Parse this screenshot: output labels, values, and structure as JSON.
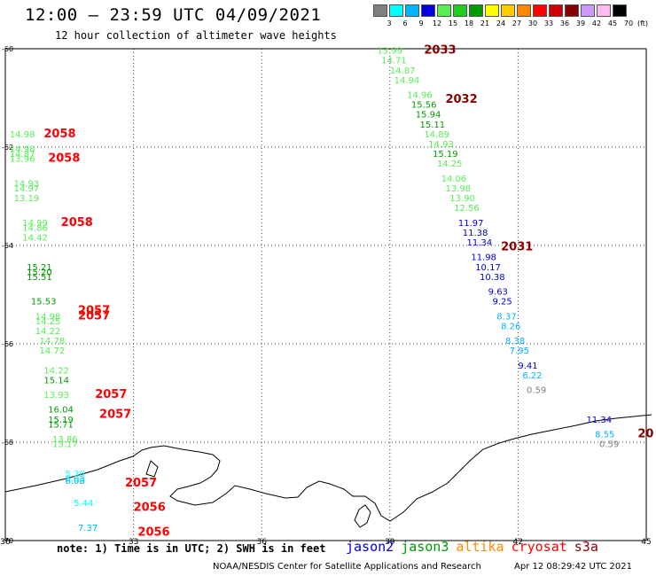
{
  "header": {
    "title": "12:00 — 23:59 UTC 04/09/2021",
    "subtitle": "12 hour collection of altimeter wave heights"
  },
  "legend": {
    "unit": "(ft)",
    "bins": [
      {
        "label": "3",
        "color": "#7f7f7f"
      },
      {
        "label": "6",
        "color": "#00ffff"
      },
      {
        "label": "9",
        "color": "#00b4ff"
      },
      {
        "label": "12",
        "color": "#0000dd"
      },
      {
        "label": "15",
        "color": "#55ee55"
      },
      {
        "label": "18",
        "color": "#22cc22"
      },
      {
        "label": "21",
        "color": "#009900"
      },
      {
        "label": "24",
        "color": "#ffff00"
      },
      {
        "label": "27",
        "color": "#ffcc00"
      },
      {
        "label": "30",
        "color": "#ff8800"
      },
      {
        "label": "33",
        "color": "#ff0000"
      },
      {
        "label": "36",
        "color": "#cc0000"
      },
      {
        "label": "39",
        "color": "#880000"
      },
      {
        "label": "42",
        "color": "#cc99ff"
      },
      {
        "label": "45",
        "color": "#ffbbee"
      },
      {
        "label": "70",
        "color": "#000000"
      }
    ]
  },
  "axes": {
    "y_labels": [
      "-60",
      "-62",
      "-64",
      "-66",
      "-68",
      "-70"
    ],
    "x_labels": [
      "30",
      "33",
      "36",
      "39",
      "42",
      "45"
    ],
    "lat_range": [
      -70,
      -60
    ],
    "lon_range": [
      30,
      45
    ]
  },
  "tracks": [
    {
      "name": "east-track",
      "points": [
        {
          "lon": 38.7,
          "lat": -60.1,
          "value": "13.99",
          "color": "#55ee55"
        },
        {
          "lon": 38.8,
          "lat": -60.3,
          "value": "14.71",
          "color": "#55ee55"
        },
        {
          "lon": 39.0,
          "lat": -60.5,
          "value": "14.87",
          "color": "#55ee55"
        },
        {
          "lon": 39.1,
          "lat": -60.7,
          "value": "14.94",
          "color": "#55ee55"
        },
        {
          "lon": 39.4,
          "lat": -61.0,
          "value": "14.96",
          "color": "#55ee55"
        },
        {
          "lon": 39.5,
          "lat": -61.2,
          "value": "15.56",
          "color": "#009900"
        },
        {
          "lon": 39.6,
          "lat": -61.4,
          "value": "15.94",
          "color": "#009900"
        },
        {
          "lon": 39.7,
          "lat": -61.6,
          "value": "15.11",
          "color": "#009900"
        },
        {
          "lon": 39.8,
          "lat": -61.8,
          "value": "14.89",
          "color": "#55ee55"
        },
        {
          "lon": 39.9,
          "lat": -62.0,
          "value": "14.93",
          "color": "#55ee55"
        },
        {
          "lon": 40.0,
          "lat": -62.2,
          "value": "15.19",
          "color": "#009900"
        },
        {
          "lon": 40.1,
          "lat": -62.4,
          "value": "14.25",
          "color": "#55ee55"
        },
        {
          "lon": 40.2,
          "lat": -62.7,
          "value": "14.06",
          "color": "#55ee55"
        },
        {
          "lon": 40.3,
          "lat": -62.9,
          "value": "13.98",
          "color": "#55ee55"
        },
        {
          "lon": 40.4,
          "lat": -63.1,
          "value": "13.90",
          "color": "#55ee55"
        },
        {
          "lon": 40.5,
          "lat": -63.3,
          "value": "12.56",
          "color": "#55ee55"
        },
        {
          "lon": 40.6,
          "lat": -63.6,
          "value": "11.97",
          "color": "#0000dd"
        },
        {
          "lon": 40.7,
          "lat": -63.8,
          "value": "11.38",
          "color": "#0000dd"
        },
        {
          "lon": 40.8,
          "lat": -64.0,
          "value": "11.34",
          "color": "#0000dd"
        },
        {
          "lon": 40.9,
          "lat": -64.3,
          "value": "11.98",
          "color": "#0000dd"
        },
        {
          "lon": 41.0,
          "lat": -64.5,
          "value": "10.17",
          "color": "#0000dd"
        },
        {
          "lon": 41.1,
          "lat": -64.7,
          "value": "10.38",
          "color": "#0000dd"
        },
        {
          "lon": 41.3,
          "lat": -65.0,
          "value": "9.63",
          "color": "#0000dd"
        },
        {
          "lon": 41.4,
          "lat": -65.2,
          "value": "9.25",
          "color": "#0000dd"
        },
        {
          "lon": 41.5,
          "lat": -65.5,
          "value": "8.37",
          "color": "#00b4ff"
        },
        {
          "lon": 41.6,
          "lat": -65.7,
          "value": "8.26",
          "color": "#00b4ff"
        },
        {
          "lon": 41.7,
          "lat": -66.0,
          "value": "8.38",
          "color": "#00b4ff"
        },
        {
          "lon": 41.8,
          "lat": -66.2,
          "value": "7.95",
          "color": "#00b4ff"
        },
        {
          "lon": 42.0,
          "lat": -66.5,
          "value": "9.41",
          "color": "#0000dd"
        },
        {
          "lon": 42.1,
          "lat": -66.7,
          "value": "6.22",
          "color": "#00b4ff"
        },
        {
          "lon": 42.2,
          "lat": -67.0,
          "value": "0.59",
          "color": "#7f7f7f"
        },
        {
          "lon": 43.6,
          "lat": -67.6,
          "value": "11.34",
          "color": "#0000dd"
        },
        {
          "lon": 43.8,
          "lat": -67.9,
          "value": "8.55",
          "color": "#00b4ff"
        },
        {
          "lon": 43.9,
          "lat": -68.1,
          "value": "0.59",
          "color": "#7f7f7f"
        }
      ],
      "times": [
        {
          "lon": 39.8,
          "lat": -60.1,
          "text": "2033",
          "color": "#880000"
        },
        {
          "lon": 40.3,
          "lat": -61.1,
          "text": "2032",
          "color": "#880000"
        },
        {
          "lon": 41.6,
          "lat": -64.1,
          "text": "2031",
          "color": "#880000"
        },
        {
          "lon": 44.8,
          "lat": -67.9,
          "text": "20",
          "color": "#880000"
        }
      ]
    },
    {
      "name": "west-track",
      "points": [
        {
          "lon": 30.1,
          "lat": -61.8,
          "value": "14.98",
          "color": "#55ee55"
        },
        {
          "lon": 30.1,
          "lat": -62.1,
          "value": "14.98",
          "color": "#55ee55"
        },
        {
          "lon": 30.1,
          "lat": -62.2,
          "value": "14.87",
          "color": "#55ee55"
        },
        {
          "lon": 30.1,
          "lat": -62.3,
          "value": "13.96",
          "color": "#55ee55"
        },
        {
          "lon": 30.2,
          "lat": -62.8,
          "value": "14.93",
          "color": "#55ee55"
        },
        {
          "lon": 30.2,
          "lat": -62.9,
          "value": "14.97",
          "color": "#55ee55"
        },
        {
          "lon": 30.2,
          "lat": -63.1,
          "value": "13.19",
          "color": "#55ee55"
        },
        {
          "lon": 30.4,
          "lat": -63.6,
          "value": "14.99",
          "color": "#55ee55"
        },
        {
          "lon": 30.4,
          "lat": -63.7,
          "value": "14.86",
          "color": "#55ee55"
        },
        {
          "lon": 30.4,
          "lat": -63.9,
          "value": "14.42",
          "color": "#55ee55"
        },
        {
          "lon": 30.5,
          "lat": -64.5,
          "value": "15.21",
          "color": "#009900"
        },
        {
          "lon": 30.5,
          "lat": -64.6,
          "value": "15.20",
          "color": "#009900"
        },
        {
          "lon": 30.5,
          "lat": -64.7,
          "value": "15.51",
          "color": "#009900"
        },
        {
          "lon": 30.6,
          "lat": -65.2,
          "value": "15.53",
          "color": "#009900"
        },
        {
          "lon": 30.7,
          "lat": -65.5,
          "value": "14.98",
          "color": "#55ee55"
        },
        {
          "lon": 30.7,
          "lat": -65.6,
          "value": "14.25",
          "color": "#55ee55"
        },
        {
          "lon": 30.7,
          "lat": -65.8,
          "value": "14.22",
          "color": "#55ee55"
        },
        {
          "lon": 30.8,
          "lat": -66.0,
          "value": "14.78",
          "color": "#55ee55"
        },
        {
          "lon": 30.8,
          "lat": -66.2,
          "value": "14.72",
          "color": "#55ee55"
        },
        {
          "lon": 30.9,
          "lat": -66.6,
          "value": "14.22",
          "color": "#55ee55"
        },
        {
          "lon": 30.9,
          "lat": -66.8,
          "value": "15.14",
          "color": "#009900"
        },
        {
          "lon": 30.9,
          "lat": -67.1,
          "value": "13.93",
          "color": "#55ee55"
        },
        {
          "lon": 31.0,
          "lat": -67.4,
          "value": "16.04",
          "color": "#009900"
        },
        {
          "lon": 31.0,
          "lat": -67.6,
          "value": "15.19",
          "color": "#009900"
        },
        {
          "lon": 31.0,
          "lat": -67.7,
          "value": "15.71",
          "color": "#009900"
        },
        {
          "lon": 31.1,
          "lat": -68.0,
          "value": "13.86",
          "color": "#55ee55"
        },
        {
          "lon": 31.1,
          "lat": -68.1,
          "value": "13.17",
          "color": "#55ee55"
        },
        {
          "lon": 31.4,
          "lat": -68.7,
          "value": "5.30",
          "color": "#00ffff"
        },
        {
          "lon": 31.4,
          "lat": -68.8,
          "value": "5.03",
          "color": "#00ffff"
        },
        {
          "lon": 31.4,
          "lat": -68.85,
          "value": "6.08",
          "color": "#00b4ff"
        },
        {
          "lon": 31.6,
          "lat": -69.3,
          "value": "5.44",
          "color": "#00ffff"
        },
        {
          "lon": 31.7,
          "lat": -69.8,
          "value": "7.37",
          "color": "#00b4ff"
        }
      ],
      "times": [
        {
          "lon": 30.9,
          "lat": -61.8,
          "text": "2058",
          "color": "#ff0000"
        },
        {
          "lon": 31.0,
          "lat": -62.3,
          "text": "2058",
          "color": "#ff0000"
        },
        {
          "lon": 31.3,
          "lat": -63.6,
          "text": "2058",
          "color": "#ff0000"
        },
        {
          "lon": 31.7,
          "lat": -65.4,
          "text": "2057",
          "color": "#ff0000"
        },
        {
          "lon": 31.7,
          "lat": -65.5,
          "text": "2057",
          "color": "#ff0000"
        },
        {
          "lon": 32.1,
          "lat": -67.1,
          "text": "2057",
          "color": "#ff0000"
        },
        {
          "lon": 32.2,
          "lat": -67.5,
          "text": "2057",
          "color": "#ff0000"
        },
        {
          "lon": 32.8,
          "lat": -68.9,
          "text": "2057",
          "color": "#ff0000"
        },
        {
          "lon": 33.0,
          "lat": -69.4,
          "text": "2056",
          "color": "#ff0000"
        },
        {
          "lon": 33.1,
          "lat": -69.9,
          "text": "2056",
          "color": "#ff0000"
        }
      ]
    }
  ],
  "footer": {
    "note": "note: 1) Time is in UTC; 2) SWH is in feet",
    "satellites": [
      {
        "name": "jason2",
        "color": "#0000dd"
      },
      {
        "name": "jason3",
        "color": "#009900"
      },
      {
        "name": "altika",
        "color": "#ff8800"
      },
      {
        "name": "cryosat",
        "color": "#ff0000"
      },
      {
        "name": "s3a",
        "color": "#880000"
      }
    ],
    "credit": "NOAA/NESDIS Center for Satellite Applications and Research",
    "timestamp": "Apr 12 08:29:42 UTC 2021"
  }
}
